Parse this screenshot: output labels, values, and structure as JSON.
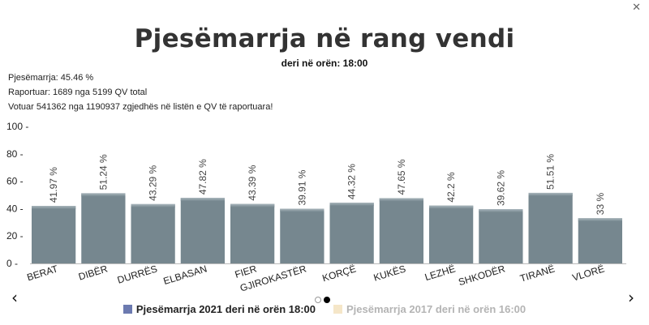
{
  "close_icon": "✕",
  "title": "Pjesëmarrja në rang vendi",
  "subtitle": "deri në orën: 18:00",
  "info": {
    "participation": "Pjesëmarrja: 45.46 %",
    "reported": "Raportuar: 1689 nga 5199 QV total",
    "voted": "Votuar 541362 nga 1190937 zgjedhës në listën e QV të raportuara!"
  },
  "nav": {
    "prev": "‹",
    "next": "›"
  },
  "legend": [
    {
      "label": "Pjesëmarrja 2021 deri në orën 18:00",
      "color": "#6c7ab0",
      "text_color": "#222222"
    },
    {
      "label": "Pjesëmarrja 2017 deri në orën 16:00",
      "color": "#f5e6c8",
      "text_color": "#b4b4b4"
    }
  ],
  "chart_data": {
    "type": "bar",
    "categories": [
      "BERAT",
      "DIBËR",
      "DURRËS",
      "ELBASAN",
      "FIER",
      "GJIROKASTËR",
      "KORÇË",
      "KUKËS",
      "LEZHË",
      "SHKODËR",
      "TIRANË",
      "VLORË"
    ],
    "values": [
      41.97,
      51.24,
      43.29,
      47.82,
      43.39,
      39.91,
      44.32,
      47.65,
      42.2,
      39.62,
      51.51,
      33
    ],
    "data_labels": [
      "41.97 %",
      "51.24 %",
      "43.29 %",
      "47.82 %",
      "43.39 %",
      "39.91 %",
      "44.32 %",
      "47.65 %",
      "42.2 %",
      "39.62 %",
      "51.51 %",
      "33 %"
    ],
    "yticks": [
      "0",
      "20",
      "40",
      "60",
      "80",
      "100"
    ],
    "ylim": [
      0,
      100
    ],
    "bar_color": "#76878f",
    "legend_position": "bottom"
  }
}
